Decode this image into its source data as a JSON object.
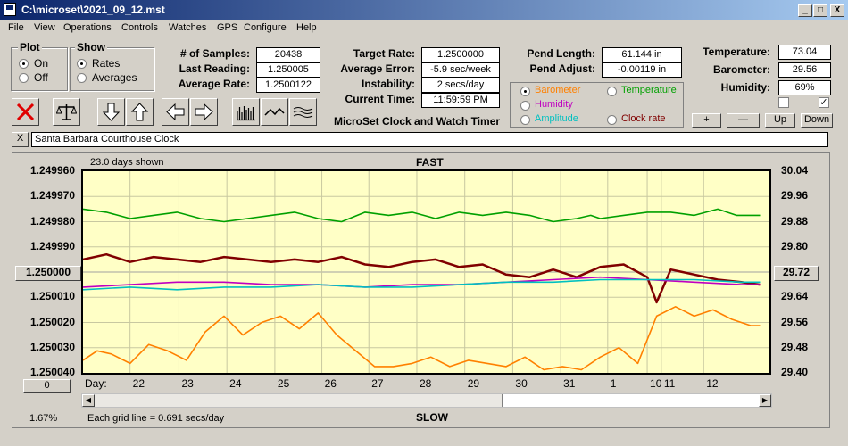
{
  "window": {
    "title": "C:\\microset\\2021_09_12.mst",
    "min_glyph": "_",
    "max_glyph": "□",
    "close_glyph": "X"
  },
  "menu": [
    "File",
    "View",
    "Operations",
    "Controls",
    "Watches",
    "GPS",
    "Configure",
    "Help"
  ],
  "plot_group": {
    "title": "Plot",
    "options": [
      {
        "label": "On",
        "selected": true
      },
      {
        "label": "Off",
        "selected": false
      }
    ]
  },
  "show_group": {
    "title": "Show",
    "options": [
      {
        "label": "Rates",
        "selected": true
      },
      {
        "label": "Averages",
        "selected": false
      }
    ]
  },
  "fields": {
    "samples": {
      "label": "# of Samples:",
      "value": "20438"
    },
    "last_reading": {
      "label": "Last Reading:",
      "value": "1.250005"
    },
    "average_rate": {
      "label": "Average Rate:",
      "value": "1.2500122"
    },
    "target_rate": {
      "label": "Target Rate:",
      "value": "1.2500000"
    },
    "average_error": {
      "label": "Average Error:",
      "value": "-5.9 sec/week"
    },
    "instability": {
      "label": "Instability:",
      "value": "2 secs/day"
    },
    "current_time": {
      "label": "Current Time:",
      "value": "11:59:59 PM"
    },
    "pend_length": {
      "label": "Pend Length:",
      "value": "61.144 in"
    },
    "pend_adjust": {
      "label": "Pend Adjust:",
      "value": "-0.00119 in"
    },
    "temperature": {
      "label": "Temperature:",
      "value": "73.04"
    },
    "barometer": {
      "label": "Barometer:",
      "value": "29.56"
    },
    "humidity": {
      "label": "Humidity:",
      "value": "69%"
    }
  },
  "app_caption": "MicroSet Clock and Watch Timer",
  "sensor_options": [
    {
      "label": "Barometer",
      "color": "#ff8000",
      "selected": true
    },
    {
      "label": "Temperature",
      "color": "#00a000",
      "selected": false
    },
    {
      "label": "Humidity",
      "color": "#c000c0",
      "selected": false
    },
    {
      "label": "Clock rate",
      "color": "#800000",
      "selected": false
    },
    {
      "label": "Amplitude",
      "color": "#00c0c0",
      "selected": false
    }
  ],
  "checkboxes": [
    {
      "checked": false
    },
    {
      "checked": true,
      "glyph": "✓"
    }
  ],
  "adjust_buttons": [
    "+",
    "—",
    "Up",
    "Down"
  ],
  "toolbar_icons": [
    "stop-icon",
    "balance-icon",
    "arrow-down-icon",
    "arrow-up-icon",
    "arrow-left-icon",
    "arrow-right-icon",
    "bars-icon",
    "wave-icon",
    "lines-icon"
  ],
  "watch": {
    "close_glyph": "X",
    "name": "Santa Barbara Courthouse Clock"
  },
  "chart_header": {
    "days_shown": "23.0 days shown",
    "top_label": "FAST",
    "bottom_label": "SLOW",
    "grid_note": "Each grid line = 0.691 secs/day",
    "percent": "1.67%",
    "day_prefix": "Day:",
    "left_marker": "1.250000",
    "right_marker": "29.72",
    "bottom_button": "0"
  },
  "chart_data": {
    "type": "line",
    "left_axis_ticks": [
      "1.249960",
      "1.249970",
      "1.249980",
      "1.249990",
      "1.250000",
      "1.250010",
      "1.250020",
      "1.250030",
      "1.250040"
    ],
    "right_axis_ticks": [
      "30.04",
      "29.96",
      "29.88",
      "29.80",
      "29.72",
      "29.64",
      "29.56",
      "29.48",
      "29.40"
    ],
    "x_tick_labels": [
      "22",
      "23",
      "24",
      "25",
      "26",
      "27",
      "28",
      "29",
      "30",
      "31",
      "1",
      "10",
      "11",
      "12"
    ],
    "x_tick_days": [
      1.0,
      2.04,
      3.06,
      4.08,
      5.08,
      6.08,
      7.1,
      8.12,
      9.14,
      10.16,
      11.16,
      12.0,
      12.3,
      13.2
    ],
    "x_range_days": [
      0,
      14.6
    ],
    "series": [
      {
        "name": "Temperature",
        "color": "#00a000",
        "axis": "right",
        "x": [
          0,
          0.5,
          1,
          1.5,
          2,
          2.5,
          3,
          3.5,
          4,
          4.5,
          5,
          5.5,
          6,
          6.5,
          7,
          7.5,
          8,
          8.5,
          9,
          9.5,
          10,
          10.5,
          10.8,
          11,
          11.5,
          12,
          12.5,
          13,
          13.5,
          13.9,
          14.4
        ],
        "values": [
          29.92,
          29.91,
          29.89,
          29.9,
          29.91,
          29.89,
          29.88,
          29.89,
          29.9,
          29.91,
          29.89,
          29.88,
          29.91,
          29.9,
          29.91,
          29.89,
          29.91,
          29.9,
          29.91,
          29.9,
          29.88,
          29.89,
          29.9,
          29.89,
          29.9,
          29.91,
          29.91,
          29.9,
          29.92,
          29.9,
          29.9
        ]
      },
      {
        "name": "Clock rate",
        "color": "#800000",
        "axis": "left",
        "x": [
          0,
          0.5,
          1,
          1.5,
          2,
          2.5,
          3,
          3.5,
          4,
          4.5,
          5,
          5.5,
          6,
          6.5,
          7,
          7.5,
          8,
          8.5,
          9,
          9.5,
          10,
          10.5,
          11,
          11.5,
          12,
          12.2,
          12.5,
          13,
          13.5,
          14,
          14.4
        ],
        "values": [
          1.249995,
          1.249993,
          1.249996,
          1.249994,
          1.249995,
          1.249996,
          1.249994,
          1.249995,
          1.249996,
          1.249995,
          1.249996,
          1.249994,
          1.249997,
          1.249998,
          1.249996,
          1.249995,
          1.249998,
          1.249997,
          1.250001,
          1.250002,
          1.249999,
          1.250002,
          1.249998,
          1.249997,
          1.250002,
          1.250012,
          1.249999,
          1.250001,
          1.250003,
          1.250004,
          1.250005
        ]
      },
      {
        "name": "Humidity",
        "color": "#c000c0",
        "axis": "left",
        "x": [
          0,
          1,
          2,
          3,
          4,
          5,
          6,
          7,
          8,
          9,
          10,
          11,
          12,
          13,
          14,
          14.4
        ],
        "values": [
          1.250006,
          1.250005,
          1.250004,
          1.250004,
          1.250005,
          1.250005,
          1.250006,
          1.250005,
          1.250005,
          1.250004,
          1.250003,
          1.250002,
          1.250003,
          1.250004,
          1.250005,
          1.250005
        ]
      },
      {
        "name": "Amplitude",
        "color": "#00c0c0",
        "axis": "left",
        "x": [
          0,
          1,
          2,
          3,
          4,
          5,
          6,
          7,
          8,
          9,
          10,
          11,
          12,
          13,
          14,
          14.4
        ],
        "values": [
          1.250007,
          1.250006,
          1.250007,
          1.250006,
          1.250006,
          1.250005,
          1.250006,
          1.250006,
          1.250005,
          1.250004,
          1.250004,
          1.250003,
          1.250003,
          1.250003,
          1.250004,
          1.250004
        ]
      },
      {
        "name": "Barometer",
        "color": "#ff8000",
        "axis": "right",
        "x": [
          0,
          0.3,
          0.6,
          1,
          1.4,
          1.8,
          2.2,
          2.6,
          3,
          3.4,
          3.8,
          4.2,
          4.6,
          5,
          5.4,
          5.8,
          6.2,
          6.6,
          7,
          7.4,
          7.8,
          8.2,
          8.6,
          9,
          9.4,
          9.8,
          10.2,
          10.6,
          11,
          11.4,
          11.8,
          12.2,
          12.6,
          13,
          13.4,
          13.8,
          14.2,
          14.4
        ],
        "values": [
          29.44,
          29.47,
          29.46,
          29.43,
          29.49,
          29.47,
          29.44,
          29.53,
          29.58,
          29.52,
          29.56,
          29.58,
          29.54,
          29.59,
          29.52,
          29.47,
          29.42,
          29.42,
          29.43,
          29.45,
          29.42,
          29.44,
          29.43,
          29.42,
          29.45,
          29.41,
          29.42,
          29.41,
          29.45,
          29.48,
          29.43,
          29.58,
          29.61,
          29.58,
          29.6,
          29.57,
          29.55,
          29.55
        ]
      }
    ]
  }
}
